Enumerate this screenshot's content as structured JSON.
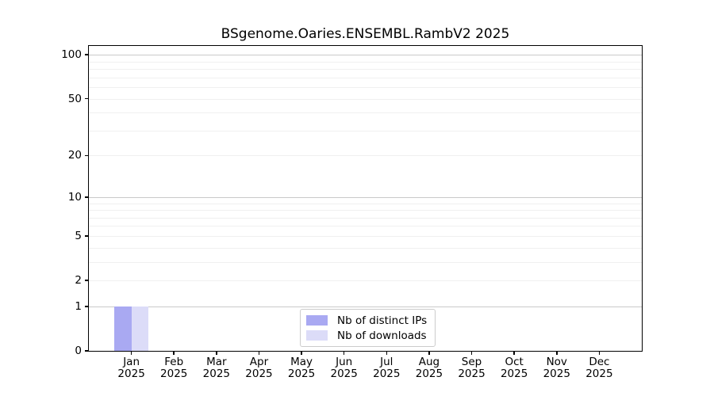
{
  "chart_data": {
    "type": "bar",
    "title": "BSgenome.Oaries.ENSEMBL.RambV2 2025",
    "x_tick_months": [
      "Jan",
      "Feb",
      "Mar",
      "Apr",
      "May",
      "Jun",
      "Jul",
      "Aug",
      "Sep",
      "Oct",
      "Nov",
      "Dec"
    ],
    "x_tick_year": "2025",
    "categories": [
      "Jan 2025",
      "Feb 2025",
      "Mar 2025",
      "Apr 2025",
      "May 2025",
      "Jun 2025",
      "Jul 2025",
      "Aug 2025",
      "Sep 2025",
      "Oct 2025",
      "Nov 2025",
      "Dec 2025"
    ],
    "series": [
      {
        "name": "Nb of distinct IPs",
        "color": "#a9a9f2",
        "values": [
          1,
          0,
          0,
          0,
          0,
          0,
          0,
          0,
          0,
          0,
          0,
          0
        ]
      },
      {
        "name": "Nb of downloads",
        "color": "#dcdcf8",
        "values": [
          1,
          0,
          0,
          0,
          0,
          0,
          0,
          0,
          0,
          0,
          0,
          0
        ]
      }
    ],
    "xlabel": "",
    "ylabel": "",
    "yscale": "log1p",
    "ylim": [
      0,
      115
    ],
    "yticks": [
      0,
      1,
      2,
      5,
      10,
      20,
      50,
      100
    ],
    "major_gridlines": [
      1,
      10,
      100
    ],
    "minor_gridlines": [
      2,
      3,
      4,
      5,
      6,
      7,
      8,
      9,
      20,
      30,
      40,
      50,
      60,
      70,
      80,
      90
    ],
    "grid_color_major": "#c9c9c9",
    "grid_color_minor": "#f0f0f0",
    "legend_position": "lower center"
  }
}
